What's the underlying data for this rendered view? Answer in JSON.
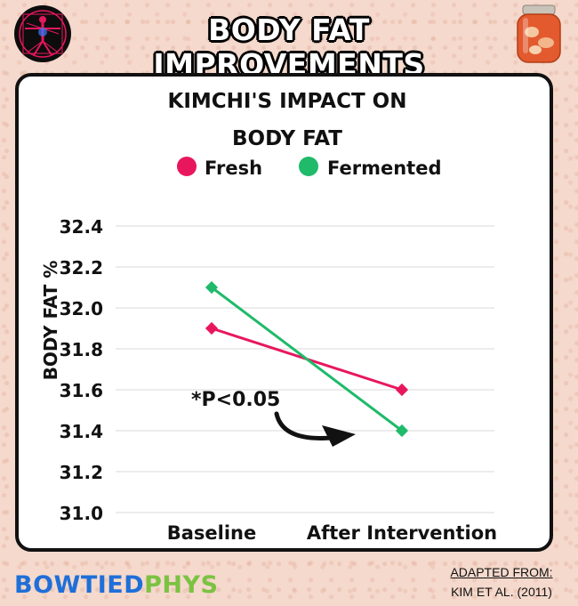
{
  "header": {
    "title": "BODY FAT IMPROVEMENTS",
    "left_logo_icon": "vitruvian-man-icon",
    "right_logo_icon": "kimchi-jar-icon"
  },
  "chart_data": {
    "type": "line",
    "title_line1": "KIMCHI'S IMPACT ON",
    "title_line2": "BODY FAT",
    "ylabel": "BODY FAT %",
    "xlabel": "",
    "categories": [
      "Baseline",
      "After Intervention"
    ],
    "ylim": [
      31.0,
      32.4
    ],
    "yticks": [
      "32.4",
      "32.2",
      "32.0",
      "31.8",
      "31.6",
      "31.4",
      "31.2",
      "31.0"
    ],
    "ytick_values": [
      32.4,
      32.2,
      32.0,
      31.8,
      31.6,
      31.4,
      31.2,
      31.0
    ],
    "grid": true,
    "legend_position": "top",
    "series": [
      {
        "name": "Fresh",
        "values": [
          31.9,
          31.6
        ],
        "color": "#e8175d"
      },
      {
        "name": "Fermented",
        "values": [
          32.1,
          31.4
        ],
        "color": "#1fba6a"
      }
    ],
    "annotation": "*P<0.05"
  },
  "footer": {
    "brand_part1": "BOWTIED",
    "brand_part2": "PHYS",
    "source_label": "ADAPTED FROM:",
    "source_ref": "KIM ET AL. (2011)"
  }
}
